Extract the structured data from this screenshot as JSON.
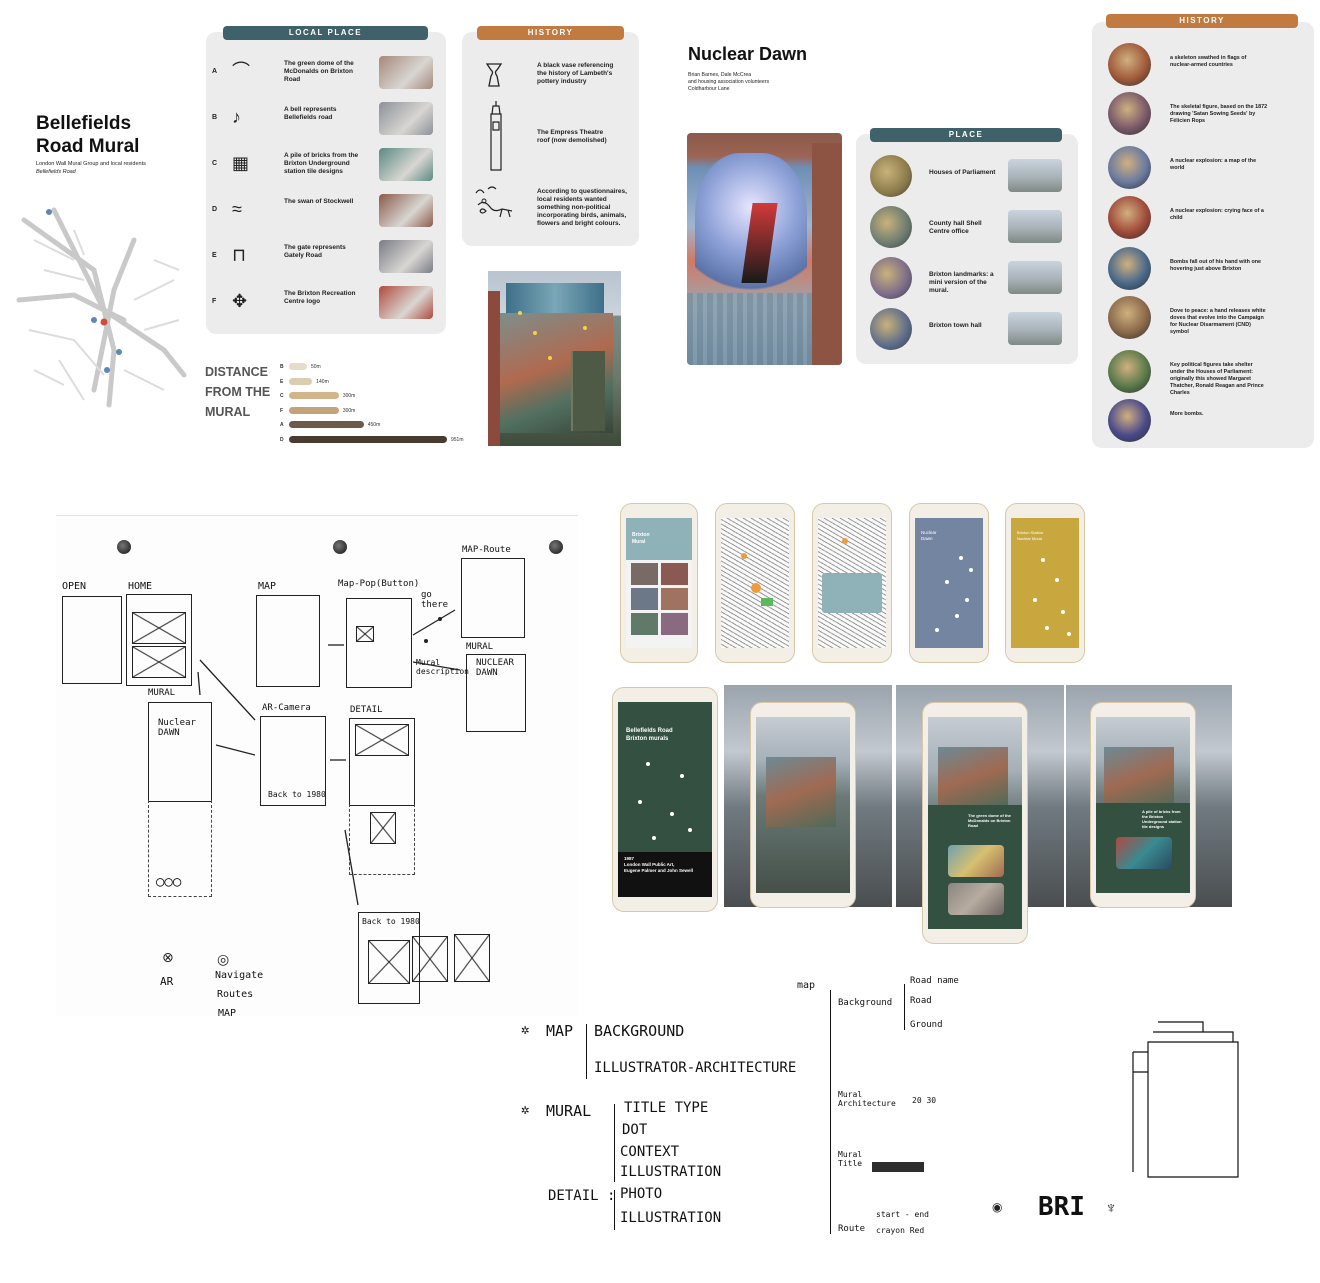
{
  "bellefields": {
    "title_line1": "Bellefields",
    "title_line2": "Road Mural",
    "subtitle": "London Wall Mural Group and local residents",
    "location": "Bellefields Road"
  },
  "local_place": {
    "header": "LOCAL PLACE",
    "items": [
      {
        "letter": "A",
        "text": "The green dome of the McDonalds on Brixton Road"
      },
      {
        "letter": "B",
        "text": "A bell represents Bellefields road"
      },
      {
        "letter": "C",
        "text": "A pile of bricks from the Brixton Underground station tile designs"
      },
      {
        "letter": "D",
        "text": "The swan of Stockwell"
      },
      {
        "letter": "E",
        "text": "The gate represents Gately Road"
      },
      {
        "letter": "F",
        "text": "The Brixton Recreation Centre logo"
      }
    ]
  },
  "history_left": {
    "header": "HISTORY",
    "items": [
      {
        "text": "A black vase referencing the history of Lambeth's pottery industry"
      },
      {
        "text": "The Empress Theatre roof (now demolished)"
      },
      {
        "text": "According to questionnaires, local residents wanted something non-political incorporating birds, animals, flowers and bright colours."
      }
    ]
  },
  "distance": {
    "title_line1": "DISTANCE",
    "title_line2": "FROM THE",
    "title_line3": "MURAL",
    "bars": [
      {
        "letter": "B",
        "label": "50m",
        "value": 50,
        "color": "#e6dcc8"
      },
      {
        "letter": "E",
        "label": "140m",
        "value": 140,
        "color": "#dccdb0"
      },
      {
        "letter": "C",
        "label": "300m",
        "value": 300,
        "color": "#d2b58a"
      },
      {
        "letter": "F",
        "label": "300m",
        "value": 300,
        "color": "#c4a27a"
      },
      {
        "letter": "A",
        "label": "450m",
        "value": 450,
        "color": "#6e5a48"
      },
      {
        "letter": "D",
        "label": "951m",
        "value": 951,
        "color": "#4a3b30"
      }
    ]
  },
  "nuclear": {
    "title": "Nuclear Dawn",
    "credit_line1": "Brian Barnes, Dale McCrea",
    "credit_line2": "and housing association volunteers",
    "location": "Coldharbour Lane"
  },
  "place": {
    "header": "PLACE",
    "items": [
      {
        "text": "Houses of Parliament"
      },
      {
        "text": "County hall Shell Centre office"
      },
      {
        "text": "Brixton landmarks: a mini version of the mural."
      },
      {
        "text": "Brixton town hall"
      }
    ]
  },
  "history_right": {
    "header": "HISTORY",
    "items": [
      {
        "text": "a skeleton swathed in flags of nuclear-armed countries"
      },
      {
        "text": "The skeletal figure, based on the 1872 drawing 'Satan Sowing Seeds' by Félicien Rops"
      },
      {
        "text": "A nuclear explosion: a map of the world"
      },
      {
        "text": "A nuclear explosion: crying face of a child"
      },
      {
        "text": "Bombs fall out of his hand with one hovering just above Brixton"
      },
      {
        "text": "Dove to peace: a hand releases white doves that evolve into the Campaign for Nuclear Disarmament (CND) symbol"
      },
      {
        "text": "Key political figures take shelter under the Houses of Parliament: originally this showed Margaret Thatcher, Ronald Reagan and Prince Charles"
      },
      {
        "text": "More bombs."
      }
    ]
  },
  "sketch": {
    "open": "OPEN",
    "home": "HOME",
    "map": "MAP",
    "map_pop": "Map-Pop(Button)",
    "map_route": "MAP-Route",
    "go_there": "go there",
    "mural_desc": "Mural description",
    "mural_lbl": "MURAL",
    "nuclear_dawn": "NUCLEAR DAWN",
    "mural2": "MURAL",
    "nuclear_dawn2": "Nuclear DAWN",
    "ar_camera": "AR-Camera",
    "back_1980": "Back to 1980",
    "detail": "DETAIL",
    "back_1980b": "Back to 1980",
    "ar": "AR",
    "navigate": "Navigate",
    "routes": "Routes",
    "map2": "MAP"
  },
  "phones": {
    "p1_title_line1": "Brixton",
    "p1_title_line2": "Mural",
    "p4_title_line1": "Nuclear",
    "p4_title_line2": "Dawn",
    "p5_title_line1": "Brixton Station",
    "p5_title_line2": "Nuclear Mural",
    "big_title_line1": "Bellefields Road",
    "big_title_line2": "Brixton murals",
    "big_year": "1987",
    "big_sub_line1": "London Wall Public Art,",
    "big_sub_line2": "Eugene Palmer and John Sewell",
    "ar1_text": "The green dome of the McDonalds on Brixton Road",
    "ar2_text": "A pile of bricks from the Brixton Underground station tile designs"
  },
  "notes_left": {
    "map": "MAP",
    "background": "BACKGROUND",
    "illustrator": "ILLUSTRATOR-ARCHITECTURE",
    "mural": "MURAL",
    "title_type": "TITLE TYPE",
    "dot": "DOT",
    "context": "CONTEXT",
    "illustration": "ILLUSTRATION",
    "detail": "DETAIL :",
    "photo": "PHOTO",
    "illustration2": "ILLUSTRATION"
  },
  "notes_right": {
    "map": "map",
    "background": "Background",
    "road_name": "Road name",
    "road": "Road",
    "ground": "Ground",
    "mural_arch": "Mural Architecture",
    "mural_title": "Mural Title",
    "route": "Route",
    "start_end": "start - end",
    "crayon": "crayon Red",
    "year": "20 30",
    "bri": "BRI"
  }
}
